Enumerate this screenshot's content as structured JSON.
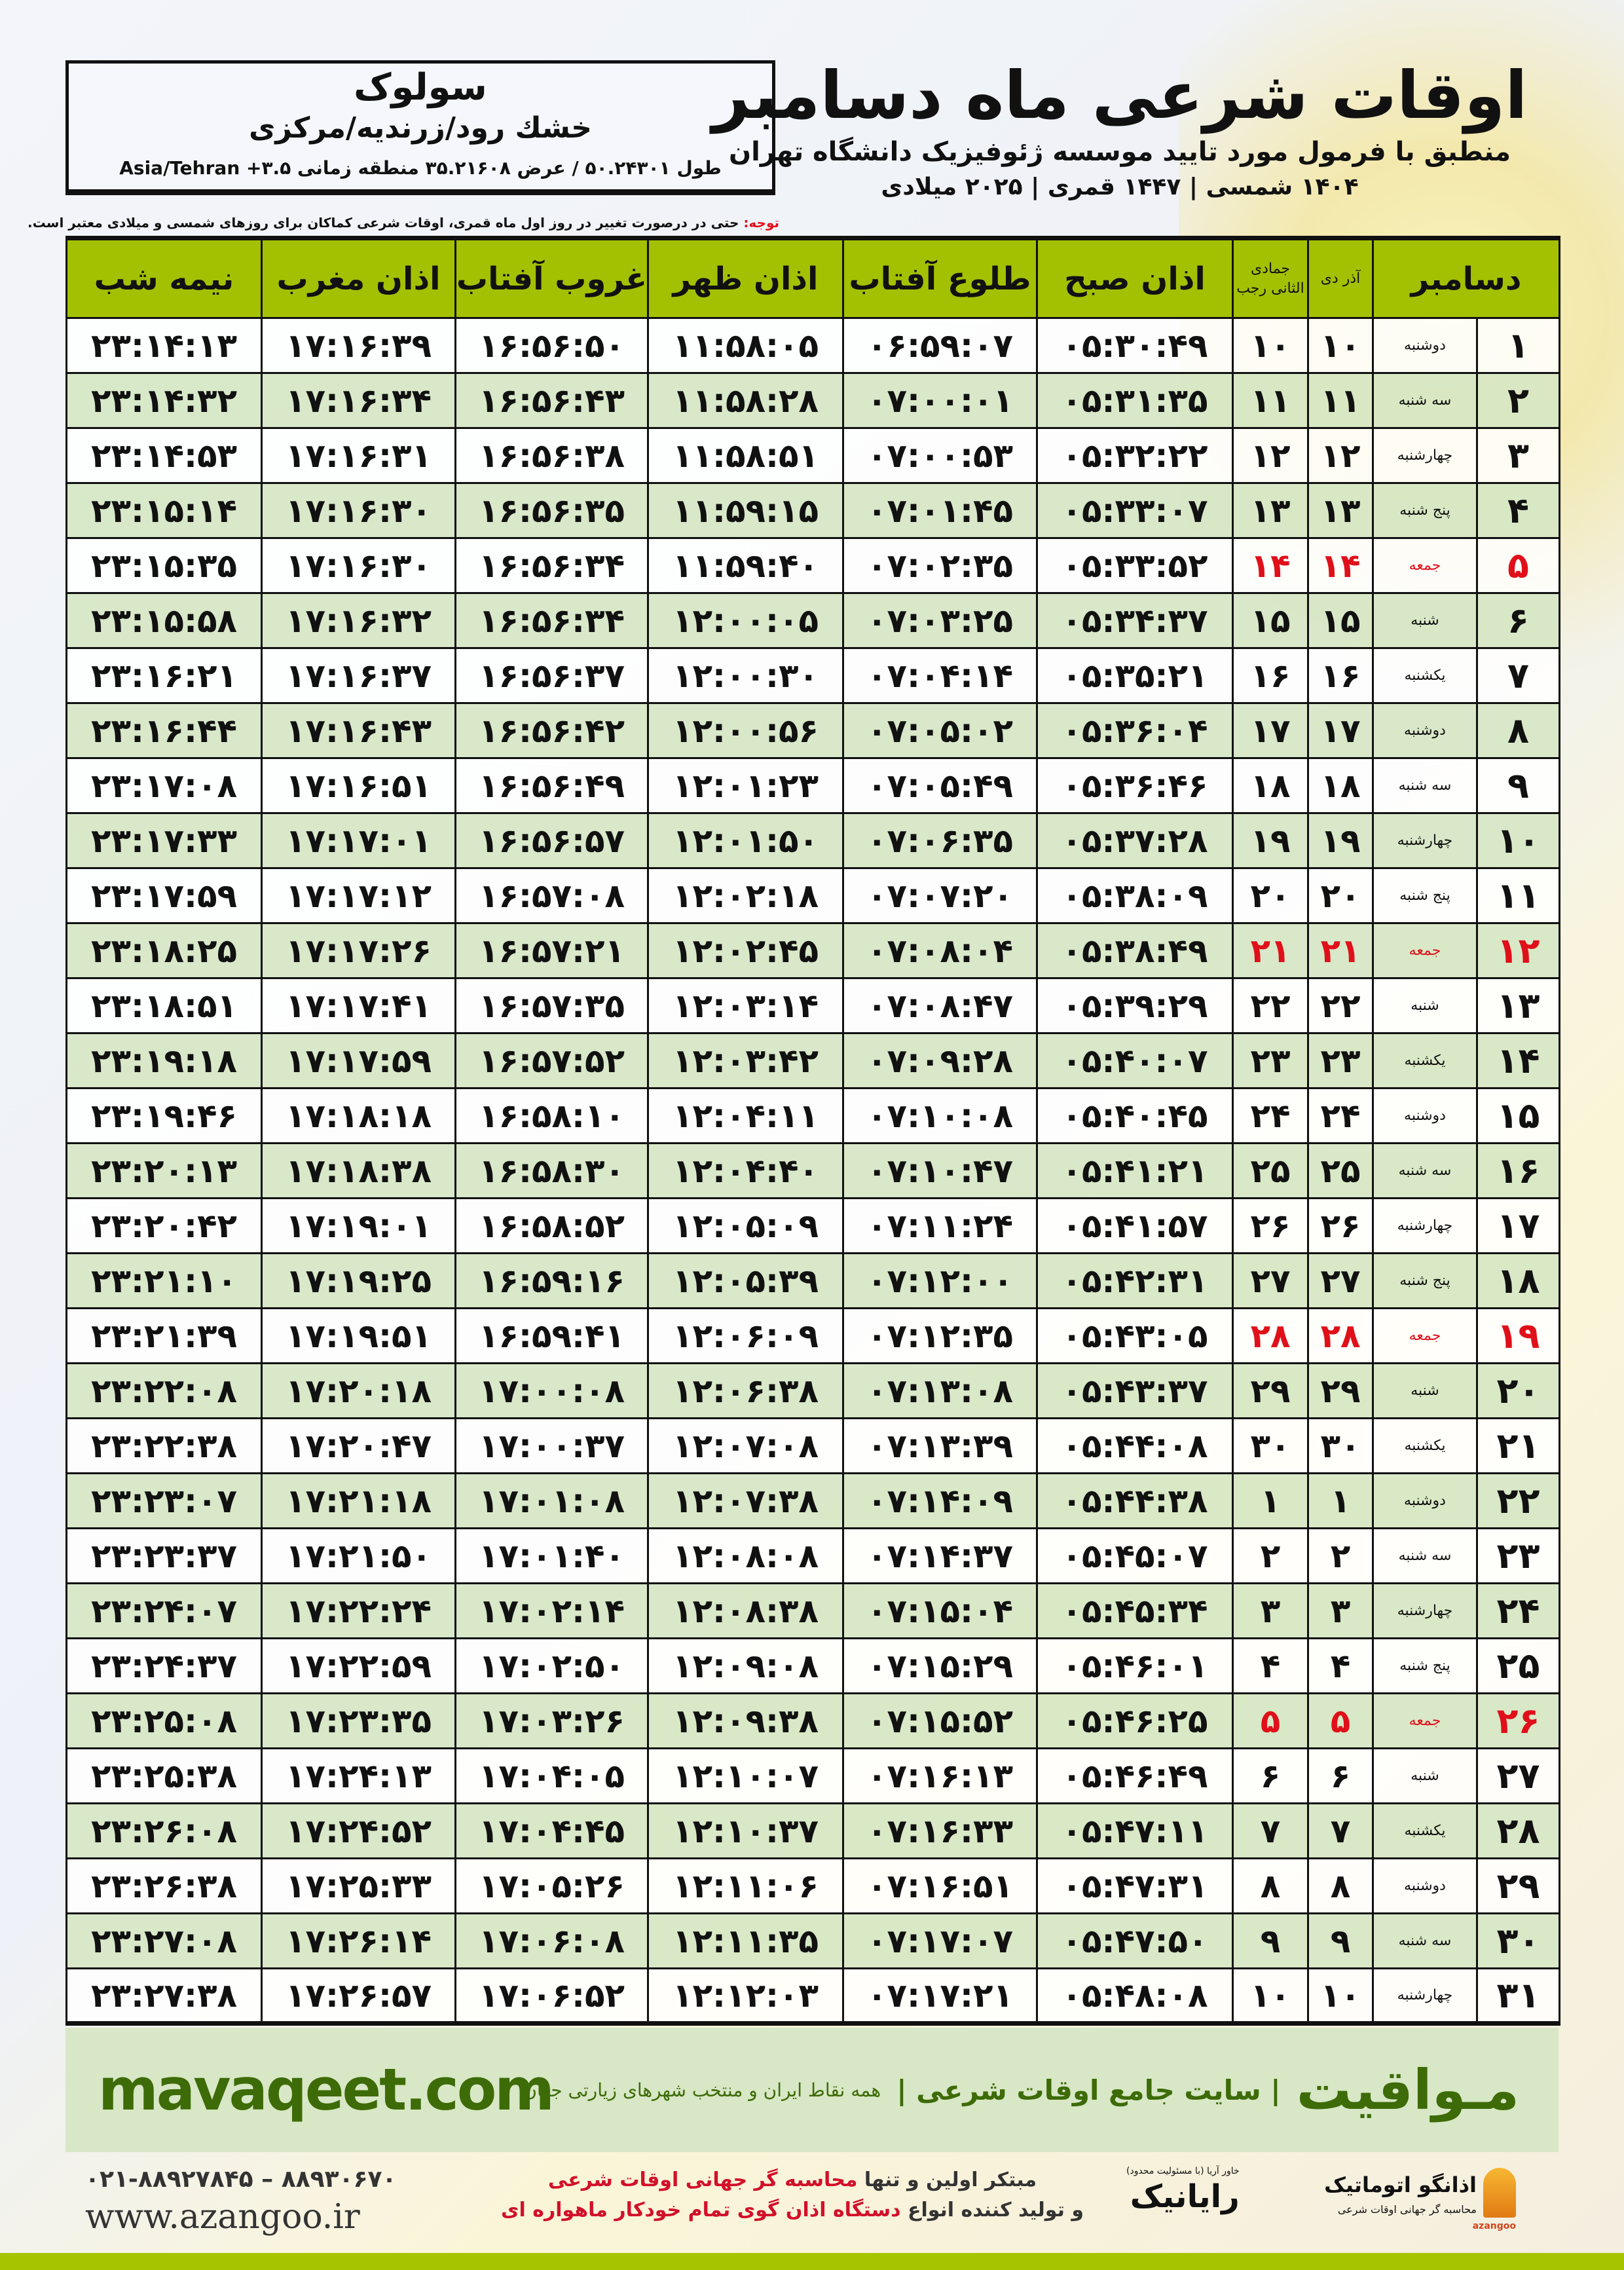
{
  "location": {
    "city": "سولوک",
    "region": "خشك رود/زرنديه/مركزی",
    "coords": "طول ۵۰.۲۴۳۰۱ / عرض ۳۵.۲۱۶۰۸ منطقه زمانی ۳.۵+ Asia/Tehran"
  },
  "header": {
    "title": "اوقات شرعی ماه دسامبر",
    "subtitle": "منطبق با فرمول مورد تایید موسسه ژئوفیزیک دانشگاه تهران",
    "years": "۱۴۰۴ شمسی | ۱۴۴۷ قمری | ۲۰۲۵ میلادی"
  },
  "note": {
    "label": "توجه:",
    "text": " حتی در درصورت تغییر در روز اول ماه قمری، اوقات شرعی کماکان برای روزهای شمسی و میلادی معتبر است."
  },
  "colors": {
    "header_green": "#a3c100",
    "row_alt": "#d6e7c4",
    "holiday_red": "#e0101a",
    "brand_green": "#3d6b08"
  },
  "table": {
    "columns": {
      "day": "دسامبر",
      "shamsi": "آذر دی",
      "qamari": "جمادی الثانی رجب",
      "fajr": "اذان صبح",
      "sunrise": "طلوع آفتاب",
      "dhuhr": "اذان ظهر",
      "sunset": "غروب آفتاب",
      "maghrib": "اذان مغرب",
      "midnight": "نیمه شب"
    },
    "rows": [
      [
        "۱",
        "دوشنبه",
        "۱۰",
        "۱۰",
        "۰۵:۳۰:۴۹",
        "۰۶:۵۹:۰۷",
        "۱۱:۵۸:۰۵",
        "۱۶:۵۶:۵۰",
        "۱۷:۱۶:۳۹",
        "۲۳:۱۴:۱۳",
        false
      ],
      [
        "۲",
        "سه شنبه",
        "۱۱",
        "۱۱",
        "۰۵:۳۱:۳۵",
        "۰۷:۰۰:۰۱",
        "۱۱:۵۸:۲۸",
        "۱۶:۵۶:۴۳",
        "۱۷:۱۶:۳۴",
        "۲۳:۱۴:۳۲",
        false
      ],
      [
        "۳",
        "چهارشنبه",
        "۱۲",
        "۱۲",
        "۰۵:۳۲:۲۲",
        "۰۷:۰۰:۵۳",
        "۱۱:۵۸:۵۱",
        "۱۶:۵۶:۳۸",
        "۱۷:۱۶:۳۱",
        "۲۳:۱۴:۵۳",
        false
      ],
      [
        "۴",
        "پنج شنبه",
        "۱۳",
        "۱۳",
        "۰۵:۳۳:۰۷",
        "۰۷:۰۱:۴۵",
        "۱۱:۵۹:۱۵",
        "۱۶:۵۶:۳۵",
        "۱۷:۱۶:۳۰",
        "۲۳:۱۵:۱۴",
        false
      ],
      [
        "۵",
        "جمعه",
        "۱۴",
        "۱۴",
        "۰۵:۳۳:۵۲",
        "۰۷:۰۲:۳۵",
        "۱۱:۵۹:۴۰",
        "۱۶:۵۶:۳۴",
        "۱۷:۱۶:۳۰",
        "۲۳:۱۵:۳۵",
        true
      ],
      [
        "۶",
        "شنبه",
        "۱۵",
        "۱۵",
        "۰۵:۳۴:۳۷",
        "۰۷:۰۳:۲۵",
        "۱۲:۰۰:۰۵",
        "۱۶:۵۶:۳۴",
        "۱۷:۱۶:۳۲",
        "۲۳:۱۵:۵۸",
        false
      ],
      [
        "۷",
        "یکشنبه",
        "۱۶",
        "۱۶",
        "۰۵:۳۵:۲۱",
        "۰۷:۰۴:۱۴",
        "۱۲:۰۰:۳۰",
        "۱۶:۵۶:۳۷",
        "۱۷:۱۶:۳۷",
        "۲۳:۱۶:۲۱",
        false
      ],
      [
        "۸",
        "دوشنبه",
        "۱۷",
        "۱۷",
        "۰۵:۳۶:۰۴",
        "۰۷:۰۵:۰۲",
        "۱۲:۰۰:۵۶",
        "۱۶:۵۶:۴۲",
        "۱۷:۱۶:۴۳",
        "۲۳:۱۶:۴۴",
        false
      ],
      [
        "۹",
        "سه شنبه",
        "۱۸",
        "۱۸",
        "۰۵:۳۶:۴۶",
        "۰۷:۰۵:۴۹",
        "۱۲:۰۱:۲۳",
        "۱۶:۵۶:۴۹",
        "۱۷:۱۶:۵۱",
        "۲۳:۱۷:۰۸",
        false
      ],
      [
        "۱۰",
        "چهارشنبه",
        "۱۹",
        "۱۹",
        "۰۵:۳۷:۲۸",
        "۰۷:۰۶:۳۵",
        "۱۲:۰۱:۵۰",
        "۱۶:۵۶:۵۷",
        "۱۷:۱۷:۰۱",
        "۲۳:۱۷:۳۳",
        false
      ],
      [
        "۱۱",
        "پنج شنبه",
        "۲۰",
        "۲۰",
        "۰۵:۳۸:۰۹",
        "۰۷:۰۷:۲۰",
        "۱۲:۰۲:۱۸",
        "۱۶:۵۷:۰۸",
        "۱۷:۱۷:۱۲",
        "۲۳:۱۷:۵۹",
        false
      ],
      [
        "۱۲",
        "جمعه",
        "۲۱",
        "۲۱",
        "۰۵:۳۸:۴۹",
        "۰۷:۰۸:۰۴",
        "۱۲:۰۲:۴۵",
        "۱۶:۵۷:۲۱",
        "۱۷:۱۷:۲۶",
        "۲۳:۱۸:۲۵",
        true
      ],
      [
        "۱۳",
        "شنبه",
        "۲۲",
        "۲۲",
        "۰۵:۳۹:۲۹",
        "۰۷:۰۸:۴۷",
        "۱۲:۰۳:۱۴",
        "۱۶:۵۷:۳۵",
        "۱۷:۱۷:۴۱",
        "۲۳:۱۸:۵۱",
        false
      ],
      [
        "۱۴",
        "یکشنبه",
        "۲۳",
        "۲۳",
        "۰۵:۴۰:۰۷",
        "۰۷:۰۹:۲۸",
        "۱۲:۰۳:۴۲",
        "۱۶:۵۷:۵۲",
        "۱۷:۱۷:۵۹",
        "۲۳:۱۹:۱۸",
        false
      ],
      [
        "۱۵",
        "دوشنبه",
        "۲۴",
        "۲۴",
        "۰۵:۴۰:۴۵",
        "۰۷:۱۰:۰۸",
        "۱۲:۰۴:۱۱",
        "۱۶:۵۸:۱۰",
        "۱۷:۱۸:۱۸",
        "۲۳:۱۹:۴۶",
        false
      ],
      [
        "۱۶",
        "سه شنبه",
        "۲۵",
        "۲۵",
        "۰۵:۴۱:۲۱",
        "۰۷:۱۰:۴۷",
        "۱۲:۰۴:۴۰",
        "۱۶:۵۸:۳۰",
        "۱۷:۱۸:۳۸",
        "۲۳:۲۰:۱۳",
        false
      ],
      [
        "۱۷",
        "چهارشنبه",
        "۲۶",
        "۲۶",
        "۰۵:۴۱:۵۷",
        "۰۷:۱۱:۲۴",
        "۱۲:۰۵:۰۹",
        "۱۶:۵۸:۵۲",
        "۱۷:۱۹:۰۱",
        "۲۳:۲۰:۴۲",
        false
      ],
      [
        "۱۸",
        "پنج شنبه",
        "۲۷",
        "۲۷",
        "۰۵:۴۲:۳۱",
        "۰۷:۱۲:۰۰",
        "۱۲:۰۵:۳۹",
        "۱۶:۵۹:۱۶",
        "۱۷:۱۹:۲۵",
        "۲۳:۲۱:۱۰",
        false
      ],
      [
        "۱۹",
        "جمعه",
        "۲۸",
        "۲۸",
        "۰۵:۴۳:۰۵",
        "۰۷:۱۲:۳۵",
        "۱۲:۰۶:۰۹",
        "۱۶:۵۹:۴۱",
        "۱۷:۱۹:۵۱",
        "۲۳:۲۱:۳۹",
        true
      ],
      [
        "۲۰",
        "شنبه",
        "۲۹",
        "۲۹",
        "۰۵:۴۳:۳۷",
        "۰۷:۱۳:۰۸",
        "۱۲:۰۶:۳۸",
        "۱۷:۰۰:۰۸",
        "۱۷:۲۰:۱۸",
        "۲۳:۲۲:۰۸",
        false
      ],
      [
        "۲۱",
        "یکشنبه",
        "۳۰",
        "۳۰",
        "۰۵:۴۴:۰۸",
        "۰۷:۱۳:۳۹",
        "۱۲:۰۷:۰۸",
        "۱۷:۰۰:۳۷",
        "۱۷:۲۰:۴۷",
        "۲۳:۲۲:۳۸",
        false
      ],
      [
        "۲۲",
        "دوشنبه",
        "۱",
        "۱",
        "۰۵:۴۴:۳۸",
        "۰۷:۱۴:۰۹",
        "۱۲:۰۷:۳۸",
        "۱۷:۰۱:۰۸",
        "۱۷:۲۱:۱۸",
        "۲۳:۲۳:۰۷",
        false
      ],
      [
        "۲۳",
        "سه شنبه",
        "۲",
        "۲",
        "۰۵:۴۵:۰۷",
        "۰۷:۱۴:۳۷",
        "۱۲:۰۸:۰۸",
        "۱۷:۰۱:۴۰",
        "۱۷:۲۱:۵۰",
        "۲۳:۲۳:۳۷",
        false
      ],
      [
        "۲۴",
        "چهارشنبه",
        "۳",
        "۳",
        "۰۵:۴۵:۳۴",
        "۰۷:۱۵:۰۴",
        "۱۲:۰۸:۳۸",
        "۱۷:۰۲:۱۴",
        "۱۷:۲۲:۲۴",
        "۲۳:۲۴:۰۷",
        false
      ],
      [
        "۲۵",
        "پنج شنبه",
        "۴",
        "۴",
        "۰۵:۴۶:۰۱",
        "۰۷:۱۵:۲۹",
        "۱۲:۰۹:۰۸",
        "۱۷:۰۲:۵۰",
        "۱۷:۲۲:۵۹",
        "۲۳:۲۴:۳۷",
        false
      ],
      [
        "۲۶",
        "جمعه",
        "۵",
        "۵",
        "۰۵:۴۶:۲۵",
        "۰۷:۱۵:۵۲",
        "۱۲:۰۹:۳۸",
        "۱۷:۰۳:۲۶",
        "۱۷:۲۳:۳۵",
        "۲۳:۲۵:۰۸",
        true
      ],
      [
        "۲۷",
        "شنبه",
        "۶",
        "۶",
        "۰۵:۴۶:۴۹",
        "۰۷:۱۶:۱۳",
        "۱۲:۱۰:۰۷",
        "۱۷:۰۴:۰۵",
        "۱۷:۲۴:۱۳",
        "۲۳:۲۵:۳۸",
        false
      ],
      [
        "۲۸",
        "یکشنبه",
        "۷",
        "۷",
        "۰۵:۴۷:۱۱",
        "۰۷:۱۶:۳۳",
        "۱۲:۱۰:۳۷",
        "۱۷:۰۴:۴۵",
        "۱۷:۲۴:۵۲",
        "۲۳:۲۶:۰۸",
        false
      ],
      [
        "۲۹",
        "دوشنبه",
        "۸",
        "۸",
        "۰۵:۴۷:۳۱",
        "۰۷:۱۶:۵۱",
        "۱۲:۱۱:۰۶",
        "۱۷:۰۵:۲۶",
        "۱۷:۲۵:۳۳",
        "۲۳:۲۶:۳۸",
        false
      ],
      [
        "۳۰",
        "سه شنبه",
        "۹",
        "۹",
        "۰۵:۴۷:۵۰",
        "۰۷:۱۷:۰۷",
        "۱۲:۱۱:۳۵",
        "۱۷:۰۶:۰۸",
        "۱۷:۲۶:۱۴",
        "۲۳:۲۷:۰۸",
        false
      ],
      [
        "۳۱",
        "چهارشنبه",
        "۱۰",
        "۱۰",
        "۰۵:۴۸:۰۸",
        "۰۷:۱۷:۲۱",
        "۱۲:۱۲:۰۳",
        "۱۷:۰۶:۵۲",
        "۱۷:۲۶:۵۷",
        "۲۳:۲۷:۳۸",
        false
      ]
    ]
  },
  "footer": {
    "site": "mavaqeet.com",
    "brand": "مـواقیت",
    "tagline": "| سایت جامع اوقات شرعی |",
    "tagline2": "همه نقاط ایران و منتخب شهرهای زیارتی جهان",
    "phones": "۰۲۱-۸۸۹۲۷۸۴۵ – ۸۸۹۳۰۶۷۰",
    "url": "www.azangoo.ir",
    "promo1_a": "مبتکر اولین و تنها ",
    "promo1_b": "محاسبه گر جهانی اوقات شرعی",
    "promo2_a": "و تولید کننده انواع ",
    "promo2_b": "دستگاه اذان گوی تمام خودکار ماهواره ای",
    "rayanik": "رایانیک",
    "rayanik_small": "خاور آریا (با مسئولیت محدود)",
    "azangoo_name": "اذانگو اتوماتیک",
    "azangoo_sub": "محاسبه گر جهانی اوقات شرعی",
    "azangoo_en": "azangoo"
  }
}
